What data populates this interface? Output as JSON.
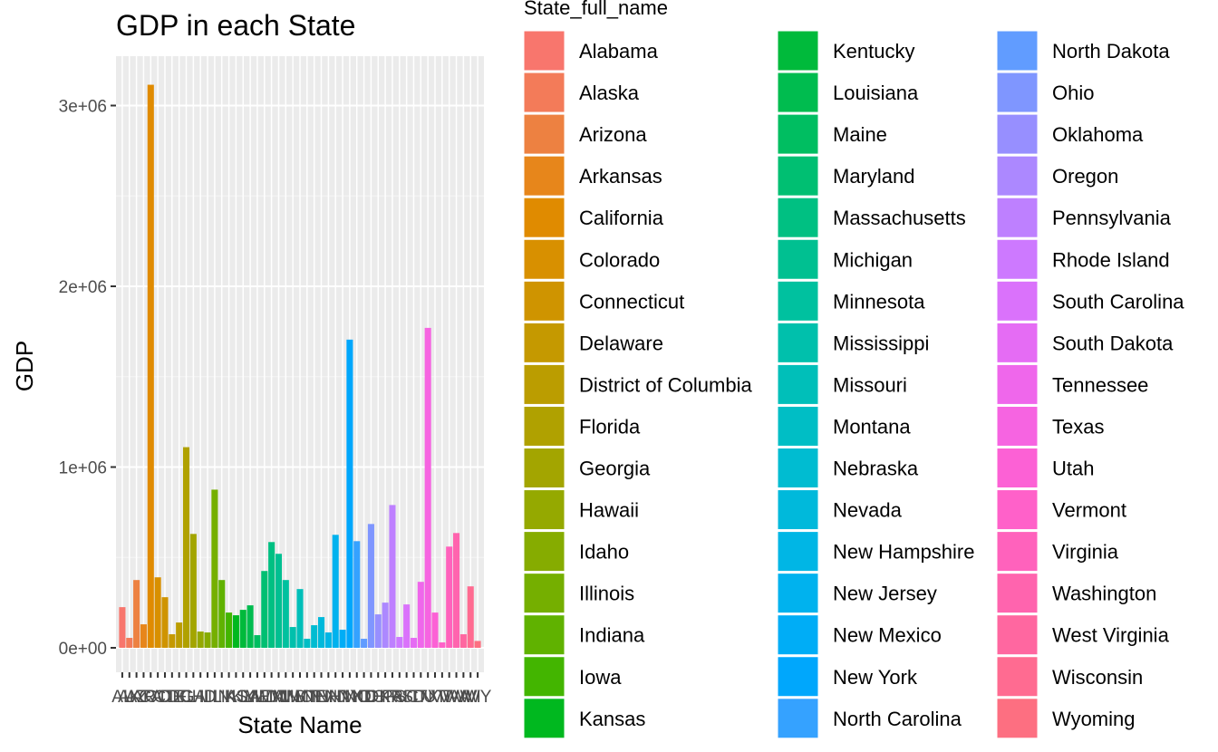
{
  "chart_data": {
    "type": "bar",
    "title": "GDP in each State",
    "xlabel": "State Name",
    "ylabel": "GDP",
    "legend_title": "State_full_name",
    "legend_position": "right",
    "grid": true,
    "ylim": [
      0,
      3000000
    ],
    "yticks": [
      0,
      1000000,
      2000000,
      3000000
    ],
    "ytick_labels": [
      "0e+00",
      "1e+06",
      "2e+06",
      "3e+06"
    ],
    "categories": [
      "AL",
      "AK",
      "AZ",
      "AR",
      "CA",
      "CO",
      "CT",
      "DE",
      "DC",
      "FL",
      "GA",
      "HI",
      "ID",
      "IL",
      "IN",
      "IA",
      "KS",
      "KY",
      "LA",
      "ME",
      "MD",
      "MA",
      "MI",
      "MN",
      "MS",
      "MO",
      "MT",
      "NE",
      "NV",
      "NH",
      "NJ",
      "NM",
      "NY",
      "NC",
      "ND",
      "OH",
      "OK",
      "OR",
      "PA",
      "RI",
      "SC",
      "SD",
      "TN",
      "TX",
      "UT",
      "VT",
      "VA",
      "WA",
      "WV",
      "WI",
      "WY"
    ],
    "states": [
      "Alabama",
      "Alaska",
      "Arizona",
      "Arkansas",
      "California",
      "Colorado",
      "Connecticut",
      "Delaware",
      "District of Columbia",
      "Florida",
      "Georgia",
      "Hawaii",
      "Idaho",
      "Illinois",
      "Indiana",
      "Iowa",
      "Kansas",
      "Kentucky",
      "Louisiana",
      "Maine",
      "Maryland",
      "Massachusetts",
      "Michigan",
      "Minnesota",
      "Mississippi",
      "Missouri",
      "Montana",
      "Nebraska",
      "Nevada",
      "New Hampshire",
      "New Jersey",
      "New Mexico",
      "New York",
      "North Carolina",
      "North Dakota",
      "Ohio",
      "Oklahoma",
      "Oregon",
      "Pennsylvania",
      "Rhode Island",
      "South Carolina",
      "South Dakota",
      "Tennessee",
      "Texas",
      "Utah",
      "Vermont",
      "Virginia",
      "Washington",
      "West Virginia",
      "Wisconsin",
      "Wyoming"
    ],
    "values": [
      225000,
      55000,
      375000,
      130000,
      3115000,
      390000,
      280000,
      75000,
      140000,
      1110000,
      630000,
      90000,
      85000,
      875000,
      375000,
      195000,
      180000,
      210000,
      235000,
      70000,
      425000,
      585000,
      520000,
      375000,
      115000,
      325000,
      50000,
      125000,
      170000,
      85000,
      625000,
      100000,
      1705000,
      590000,
      50000,
      685000,
      185000,
      250000,
      790000,
      60000,
      240000,
      55000,
      365000,
      1770000,
      195000,
      30000,
      560000,
      635000,
      75000,
      340000,
      38000
    ],
    "colors": [
      "#F8766D",
      "#F37B59",
      "#ED8141",
      "#E7861B",
      "#E08B00",
      "#D89000",
      "#CF9400",
      "#C59900",
      "#BB9D00",
      "#B0A100",
      "#A3A500",
      "#95A900",
      "#86AC00",
      "#75AF00",
      "#60B200",
      "#43B500",
      "#00B81F",
      "#00BA3B",
      "#00BC4F",
      "#00BE61",
      "#00BF72",
      "#00C082",
      "#00C091",
      "#00C19F",
      "#00C0AC",
      "#00BFB9",
      "#00BEC5",
      "#00BCD1",
      "#00B9DB",
      "#00B6E5",
      "#00B2EE",
      "#00ADF6",
      "#00A7FC",
      "#35A2FF",
      "#619CFF",
      "#7F96FF",
      "#978FFF",
      "#AC88FF",
      "#BE80FF",
      "#CD79FF",
      "#DA72FB",
      "#E56CF4",
      "#EF67EB",
      "#F664E1",
      "#FC61D5",
      "#FF61C9",
      "#FF62BC",
      "#FF64AE",
      "#FF67A0",
      "#FF6B91",
      "#FD6F81"
    ]
  }
}
